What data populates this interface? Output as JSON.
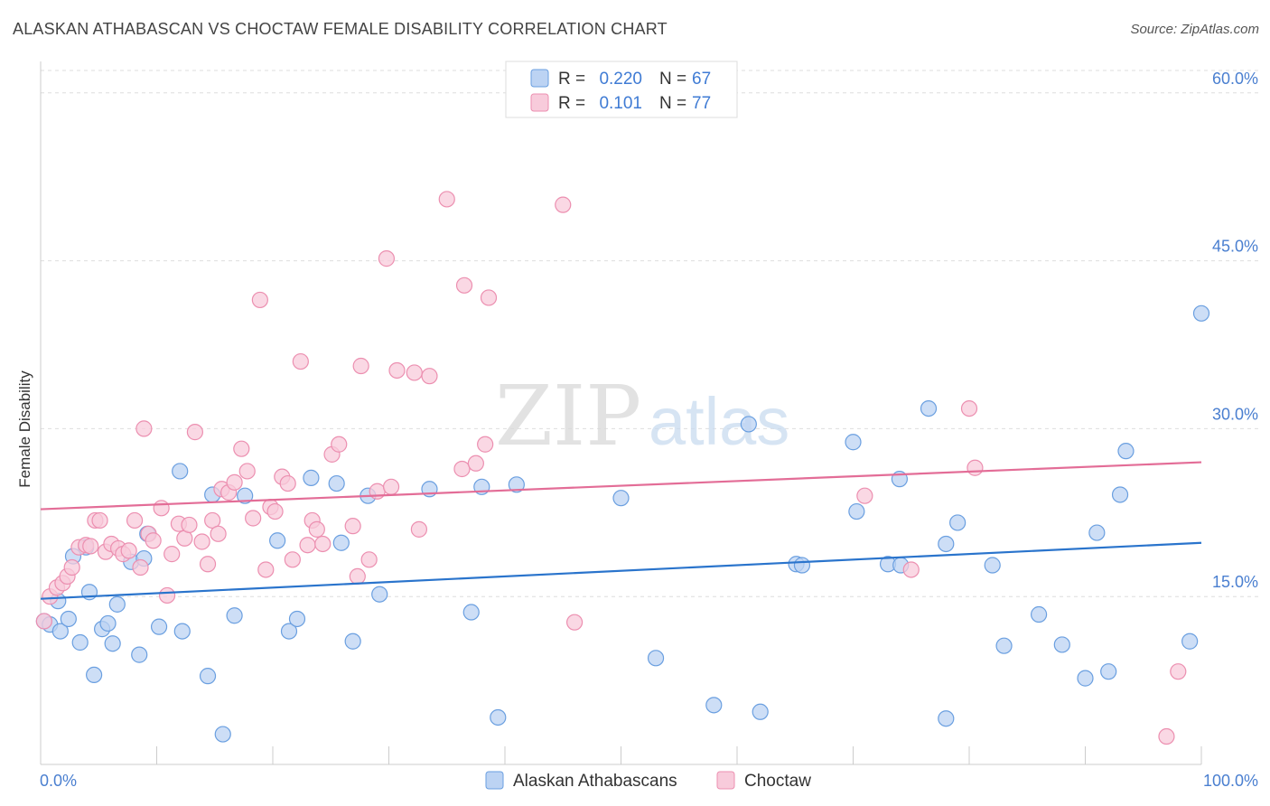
{
  "title": "ALASKAN ATHABASCAN VS CHOCTAW FEMALE DISABILITY CORRELATION CHART",
  "source": "Source: ZipAtlas.com",
  "watermark": {
    "zip": "ZIP",
    "atlas": "atlas"
  },
  "chart_data": {
    "type": "scatter",
    "ylabel": "Female Disability",
    "xlim": [
      0,
      100
    ],
    "ylim": [
      0,
      62
    ],
    "x_tick_labels": [
      "0.0%",
      "100.0%"
    ],
    "y_ticks": [
      15,
      30,
      45,
      60
    ],
    "y_tick_labels": [
      "15.0%",
      "30.0%",
      "45.0%",
      "60.0%"
    ],
    "grid": true,
    "legend_position": "top-center",
    "colors": {
      "blue": "#6a9fe0",
      "blue_fill": "#bcd3f3",
      "blue_line": "#2a74cc",
      "pink": "#ec8fb0",
      "pink_fill": "#f8cbdb",
      "pink_line": "#e36d97",
      "tick_label": "#4a7fd0"
    },
    "legend": [
      {
        "r_label": "R =",
        "r_value": "0.220",
        "n_label": "N =",
        "n_value": "67"
      },
      {
        "r_label": "R =",
        "r_value": "0.101",
        "n_label": "N =",
        "n_value": "77"
      }
    ],
    "series": [
      {
        "name": "Alaskan Athabascans",
        "color": "#6a9fe0",
        "trend": {
          "x": [
            0,
            100
          ],
          "y": [
            14.8,
            19.8
          ]
        },
        "points": [
          [
            0.3,
            12.8
          ],
          [
            0.8,
            12.5
          ],
          [
            1.5,
            14.6
          ],
          [
            1.7,
            11.9
          ],
          [
            2.4,
            13.0
          ],
          [
            2.8,
            18.6
          ],
          [
            3.4,
            10.9
          ],
          [
            3.9,
            19.4
          ],
          [
            4.2,
            15.4
          ],
          [
            4.6,
            8.0
          ],
          [
            5.3,
            12.1
          ],
          [
            5.8,
            12.6
          ],
          [
            6.2,
            10.8
          ],
          [
            6.6,
            14.3
          ],
          [
            7.8,
            18.1
          ],
          [
            8.5,
            9.8
          ],
          [
            8.9,
            18.4
          ],
          [
            9.2,
            20.6
          ],
          [
            10.2,
            12.3
          ],
          [
            12.0,
            26.2
          ],
          [
            12.2,
            11.9
          ],
          [
            14.4,
            7.9
          ],
          [
            14.8,
            24.1
          ],
          [
            15.7,
            2.7
          ],
          [
            16.7,
            13.3
          ],
          [
            17.6,
            24.0
          ],
          [
            20.4,
            20.0
          ],
          [
            21.4,
            11.9
          ],
          [
            22.1,
            13.0
          ],
          [
            23.3,
            25.6
          ],
          [
            25.5,
            25.1
          ],
          [
            25.9,
            19.8
          ],
          [
            26.9,
            11.0
          ],
          [
            28.2,
            24.0
          ],
          [
            29.2,
            15.2
          ],
          [
            33.5,
            24.6
          ],
          [
            37.1,
            13.6
          ],
          [
            38.0,
            24.8
          ],
          [
            39.4,
            4.2
          ],
          [
            41.0,
            25.0
          ],
          [
            50.0,
            23.8
          ],
          [
            53.0,
            9.5
          ],
          [
            58.0,
            5.3
          ],
          [
            61.0,
            30.4
          ],
          [
            62.0,
            4.7
          ],
          [
            65.1,
            17.9
          ],
          [
            65.6,
            17.8
          ],
          [
            70.0,
            28.8
          ],
          [
            70.3,
            22.6
          ],
          [
            73.0,
            17.9
          ],
          [
            74.0,
            25.5
          ],
          [
            74.1,
            17.8
          ],
          [
            76.5,
            31.8
          ],
          [
            78.0,
            19.7
          ],
          [
            78.0,
            4.1
          ],
          [
            79.0,
            21.6
          ],
          [
            82.0,
            17.8
          ],
          [
            83.0,
            10.6
          ],
          [
            86.0,
            13.4
          ],
          [
            88.0,
            10.7
          ],
          [
            90.0,
            7.7
          ],
          [
            91.0,
            20.7
          ],
          [
            92.0,
            8.3
          ],
          [
            93.0,
            24.1
          ],
          [
            93.5,
            28.0
          ],
          [
            99.0,
            11.0
          ],
          [
            100.0,
            40.3
          ]
        ]
      },
      {
        "name": "Choctaw",
        "color": "#ec8fb0",
        "trend": {
          "x": [
            0,
            100
          ],
          "y": [
            22.8,
            27.0
          ]
        },
        "points": [
          [
            0.3,
            12.8
          ],
          [
            0.8,
            15.0
          ],
          [
            1.4,
            15.8
          ],
          [
            1.9,
            16.2
          ],
          [
            2.3,
            16.8
          ],
          [
            2.7,
            17.6
          ],
          [
            3.3,
            19.4
          ],
          [
            3.9,
            19.6
          ],
          [
            4.3,
            19.5
          ],
          [
            4.7,
            21.8
          ],
          [
            5.1,
            21.8
          ],
          [
            5.6,
            19.0
          ],
          [
            6.1,
            19.7
          ],
          [
            6.7,
            19.3
          ],
          [
            7.1,
            18.8
          ],
          [
            7.6,
            19.1
          ],
          [
            8.1,
            21.8
          ],
          [
            8.6,
            17.6
          ],
          [
            8.9,
            30.0
          ],
          [
            9.3,
            20.6
          ],
          [
            9.7,
            20.0
          ],
          [
            10.4,
            22.9
          ],
          [
            10.9,
            15.1
          ],
          [
            11.3,
            18.8
          ],
          [
            11.9,
            21.5
          ],
          [
            12.4,
            20.2
          ],
          [
            12.8,
            21.4
          ],
          [
            13.3,
            29.7
          ],
          [
            13.9,
            19.9
          ],
          [
            14.4,
            17.9
          ],
          [
            14.8,
            21.8
          ],
          [
            15.3,
            20.6
          ],
          [
            15.6,
            24.6
          ],
          [
            16.2,
            24.3
          ],
          [
            16.7,
            25.2
          ],
          [
            17.3,
            28.2
          ],
          [
            17.8,
            26.2
          ],
          [
            18.3,
            22.0
          ],
          [
            18.9,
            41.5
          ],
          [
            19.4,
            17.4
          ],
          [
            19.8,
            23.0
          ],
          [
            20.2,
            22.6
          ],
          [
            20.8,
            25.7
          ],
          [
            21.3,
            25.1
          ],
          [
            21.7,
            18.3
          ],
          [
            22.4,
            36.0
          ],
          [
            23.0,
            19.6
          ],
          [
            23.4,
            21.8
          ],
          [
            23.8,
            21.0
          ],
          [
            24.3,
            19.7
          ],
          [
            25.1,
            27.7
          ],
          [
            25.7,
            28.6
          ],
          [
            26.9,
            21.3
          ],
          [
            27.3,
            16.8
          ],
          [
            27.6,
            35.6
          ],
          [
            28.3,
            18.3
          ],
          [
            29.0,
            24.4
          ],
          [
            29.8,
            45.2
          ],
          [
            30.2,
            24.8
          ],
          [
            30.7,
            35.2
          ],
          [
            32.2,
            35.0
          ],
          [
            32.6,
            21.0
          ],
          [
            33.5,
            34.7
          ],
          [
            35.0,
            50.5
          ],
          [
            36.3,
            26.4
          ],
          [
            36.5,
            42.8
          ],
          [
            37.5,
            26.9
          ],
          [
            38.3,
            28.6
          ],
          [
            38.6,
            41.7
          ],
          [
            45.0,
            50.0
          ],
          [
            46.0,
            12.7
          ],
          [
            71.0,
            24.0
          ],
          [
            75.0,
            17.4
          ],
          [
            80.0,
            31.8
          ],
          [
            80.5,
            26.5
          ],
          [
            97.0,
            2.5
          ],
          [
            98.0,
            8.3
          ]
        ]
      }
    ]
  }
}
